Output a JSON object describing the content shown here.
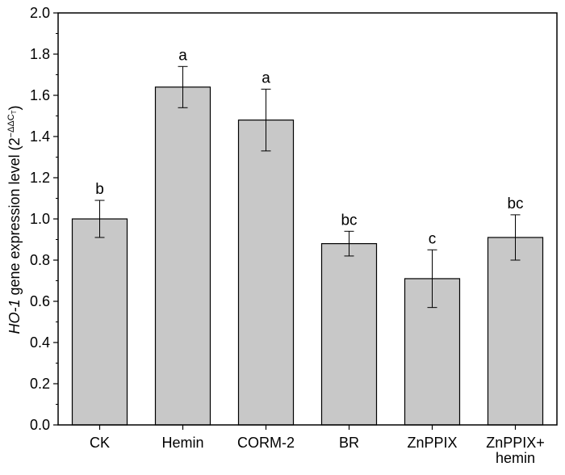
{
  "chart_data": {
    "type": "bar",
    "categories": [
      [
        "CK"
      ],
      [
        "Hemin"
      ],
      [
        "CORM-2"
      ],
      [
        "BR"
      ],
      [
        "ZnPPIX"
      ],
      [
        "ZnPPIX+",
        "hemin"
      ]
    ],
    "values": [
      1.0,
      1.64,
      1.48,
      0.88,
      0.71,
      0.91
    ],
    "errors": [
      0.09,
      0.1,
      0.15,
      0.06,
      0.14,
      0.11
    ],
    "significance": [
      "b",
      "a",
      "a",
      "bc",
      "c",
      "bc"
    ],
    "ylabel_italic": "HO-1",
    "ylabel_text": " gene expression level (2",
    "ylabel_superscript": "−ΔΔC",
    "ylabel_subscript": "T",
    "ylabel_close": ")",
    "ylim": [
      0,
      2.0
    ],
    "yticks": [
      "0.0",
      "0.2",
      "0.4",
      "0.6",
      "0.8",
      "1.0",
      "1.2",
      "1.4",
      "1.6",
      "1.8",
      "2.0"
    ],
    "bar_color": "#c8c8c8",
    "grid": false
  }
}
